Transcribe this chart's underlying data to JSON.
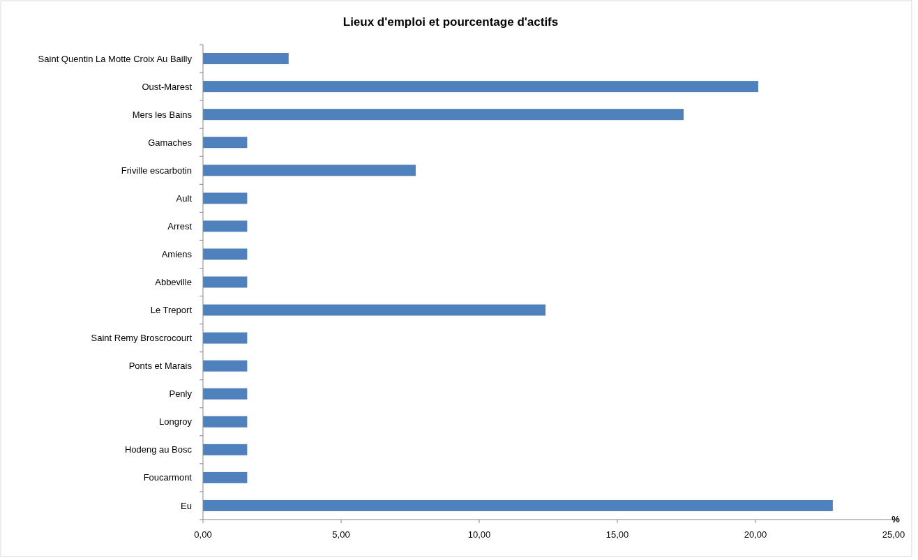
{
  "chart_data": {
    "type": "bar",
    "orientation": "horizontal",
    "title": "Lieux d'emploi et pourcentage d'actifs",
    "xlabel": "%",
    "categories": [
      "Saint Quentin La Motte Croix Au Bailly",
      "Oust-Marest",
      "Mers les Bains",
      "Gamaches",
      "Friville escarbotin",
      "Ault",
      "Arrest",
      "Amiens",
      "Abbeville",
      "Le Treport",
      "Saint Remy Broscrocourt",
      "Ponts et Marais",
      "Penly",
      "Longroy",
      "Hodeng au Bosc",
      "Foucarmont",
      "Eu"
    ],
    "values": [
      3.1,
      20.1,
      17.4,
      1.6,
      7.7,
      1.6,
      1.6,
      1.6,
      1.6,
      12.4,
      1.6,
      1.6,
      1.6,
      1.6,
      1.6,
      1.6,
      22.8
    ],
    "color": "#4f81bd",
    "xlim": [
      0,
      25
    ],
    "xticks": [
      {
        "value": 0,
        "label": "0,00"
      },
      {
        "value": 5,
        "label": "5,00"
      },
      {
        "value": 10,
        "label": "10,00"
      },
      {
        "value": 15,
        "label": "15,00"
      },
      {
        "value": 20,
        "label": "20,00"
      },
      {
        "value": 25,
        "label": "25,00"
      }
    ],
    "grid": false
  }
}
